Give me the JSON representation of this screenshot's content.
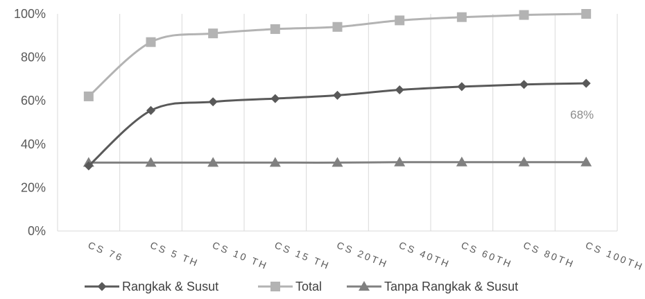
{
  "chart_data": {
    "type": "line",
    "categories": [
      "CS 76",
      "CS 5 TH",
      "CS 10 TH",
      "CS 15 TH",
      "CS 20TH",
      "CS 40TH",
      "CS 60TH",
      "CS 80TH",
      "CS 100TH"
    ],
    "ylim": [
      0,
      100
    ],
    "yticks": [
      "0%",
      "20%",
      "40%",
      "60%",
      "80%",
      "100%"
    ],
    "grid": "vertical",
    "legend_position": "bottom",
    "series": [
      {
        "name": "Rangkak & Susut",
        "values": [
          30,
          55.5,
          59.5,
          61,
          62.5,
          65,
          66.5,
          67.5,
          68
        ],
        "color": "#595959",
        "marker": "diamond"
      },
      {
        "name": "Total",
        "values": [
          62,
          87,
          91,
          93,
          94,
          97,
          98.5,
          99.5,
          100
        ],
        "color": "#b3b3b3",
        "marker": "square"
      },
      {
        "name": "Tanpa Rangkak & Susut",
        "values": [
          31.5,
          31.5,
          31.5,
          31.5,
          31.5,
          31.7,
          31.7,
          31.7,
          31.7
        ],
        "color": "#808080",
        "marker": "triangle"
      }
    ],
    "annotations": [
      {
        "text": "68%",
        "series": "Rangkak & Susut",
        "category": "CS 100TH"
      }
    ]
  }
}
